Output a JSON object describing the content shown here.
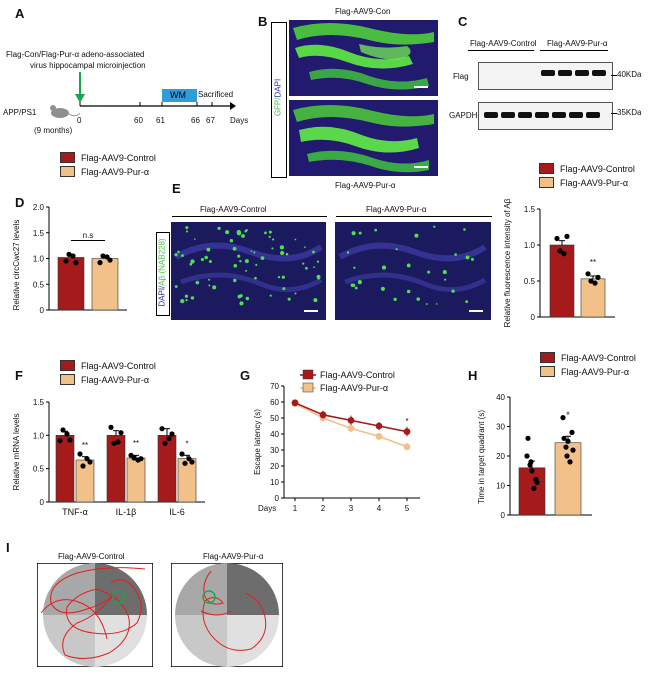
{
  "colors": {
    "control": "#a51b1b",
    "pur": "#f2c089",
    "gfp": "#3ec43e",
    "dapi": "#1f1a7a",
    "wm_box": "#2f9ed8",
    "arrow": "#1aa64b"
  },
  "legend": {
    "control": "Flag-AAV9-Control",
    "pur": "Flag-AAV9-Pur-α"
  },
  "panelA": {
    "label": "A",
    "title_line1": "Flag-Con/Flag-Pur-α  adeno-associated",
    "title_line2": "virus hippocampal microinjection",
    "mouse": "APP/PS1",
    "age": "(9 months)",
    "ticks": [
      "0",
      "60",
      "61",
      "66",
      "67"
    ],
    "wm": "WM",
    "sacrificed": "Sacrificed",
    "days": "Days"
  },
  "panelB": {
    "label": "B",
    "top_title": "Flag-AAV9-Con",
    "bottom_title": "Flag-AAV9-Pur-α",
    "side_gfp": "GFP/",
    "side_dapi": "DAPI"
  },
  "panelC": {
    "label": "C",
    "header_control": "Flag-AAV9-Control",
    "header_pur": "Flag-AAV9-Pur-α",
    "row1": "Flag",
    "row2": "GAPDH",
    "mw1": "40KDa",
    "mw2": "35KDa"
  },
  "panelD": {
    "label": "D",
    "ylabel": "Relative circCwc27 levels",
    "sig": "n.s"
  },
  "panelE": {
    "label": "E",
    "header_control": "Flag-AAV9-Control",
    "header_pur": "Flag-AAV9-Pur-α",
    "side_dapi": "DAPI/",
    "side_ab": "Aβ (NAB228)",
    "ylabel": "Relative fluorescence intensity of Aβ",
    "sig": "**"
  },
  "panelF": {
    "label": "F",
    "ylabel": "Relative mRNA levels"
  },
  "panelG": {
    "label": "G",
    "ylabel": "Escape latency (s)",
    "xlabel": "Days",
    "sig": "*"
  },
  "panelH": {
    "label": "H",
    "ylabel": "Time in target quadrant (s)",
    "sig": "*"
  },
  "panelI": {
    "label": "I",
    "title_control": "Flag-AAV9-Control",
    "title_pur": "Flag-AAV9-Pur-α"
  },
  "chart_data": [
    {
      "id": "D",
      "type": "bar",
      "categories": [
        "Flag-AAV9-Control",
        "Flag-AAV9-Pur-α"
      ],
      "values": [
        1.02,
        1.0
      ],
      "errors": [
        0.05,
        0.05
      ],
      "points": [
        [
          0.95,
          1.08,
          1.05,
          0.92
        ],
        [
          0.92,
          1.05,
          1.03,
          0.97
        ]
      ],
      "ylim": [
        0,
        2.0
      ],
      "yticks": [
        "0",
        "0.5",
        "1.0",
        "1.5",
        "2.0"
      ],
      "ylabel": "Relative circCwc27 levels",
      "annotation": "n.s"
    },
    {
      "id": "E",
      "type": "bar",
      "categories": [
        "Flag-AAV9-Control",
        "Flag-AAV9-Pur-α"
      ],
      "values": [
        1.0,
        0.53
      ],
      "errors": [
        0.06,
        0.04
      ],
      "points": [
        [
          1.09,
          0.92,
          0.88,
          1.12
        ],
        [
          0.6,
          0.5,
          0.47,
          0.55
        ]
      ],
      "ylim": [
        0,
        1.5
      ],
      "yticks": [
        "0",
        "0.5",
        "1.0",
        "1.5"
      ],
      "ylabel": "Relative fluorescence intensity of Aβ",
      "annotation": "**"
    },
    {
      "id": "F",
      "type": "bar",
      "categories": [
        "TNF-α",
        "IL-1β",
        "IL-6"
      ],
      "series": [
        {
          "name": "Flag-AAV9-Control",
          "values": [
            1.0,
            1.0,
            1.0
          ],
          "errors": [
            0.06,
            0.07,
            0.1
          ],
          "points": [
            [
              0.92,
              1.08,
              1.02,
              0.93
            ],
            [
              1.12,
              0.88,
              0.9,
              1.04
            ],
            [
              1.1,
              0.88,
              0.95,
              1.02
            ]
          ]
        },
        {
          "name": "Flag-AAV9-Pur-α",
          "values": [
            0.63,
            0.66,
            0.65
          ],
          "errors": [
            0.05,
            0.04,
            0.05
          ],
          "points": [
            [
              0.72,
              0.54,
              0.65,
              0.6
            ],
            [
              0.7,
              0.66,
              0.63,
              0.65
            ],
            [
              0.72,
              0.58,
              0.65,
              0.6
            ]
          ]
        }
      ],
      "annotations": [
        "**",
        "**",
        "*"
      ],
      "ylim": [
        0,
        1.5
      ],
      "yticks": [
        "0",
        "0.5",
        "1.0",
        "1.5"
      ],
      "ylabel": "Relative mRNA levels"
    },
    {
      "id": "G",
      "type": "line",
      "x": [
        1,
        2,
        3,
        4,
        5
      ],
      "series": [
        {
          "name": "Flag-AAV9-Control",
          "values": [
            59.5,
            52,
            48.5,
            45,
            41.5
          ],
          "errors": [
            1.5,
            2.5,
            3,
            2.5,
            3
          ]
        },
        {
          "name": "Flag-AAV9-Pur-α",
          "values": [
            59,
            50,
            43.5,
            38.5,
            32
          ],
          "errors": [
            1.5,
            2,
            2.5,
            2,
            2
          ]
        }
      ],
      "ylim": [
        0,
        70
      ],
      "yticks": [
        "0",
        "10",
        "20",
        "30",
        "40",
        "50",
        "60",
        "70"
      ],
      "xticks": [
        "1",
        "2",
        "3",
        "4",
        "5"
      ],
      "xlabel": "Days",
      "ylabel": "Escape latency (s)",
      "annotation": "*"
    },
    {
      "id": "H",
      "type": "bar",
      "categories": [
        "Flag-AAV9-Control",
        "Flag-AAV9-Pur-α"
      ],
      "values": [
        16,
        24.5
      ],
      "errors": [
        2.3,
        2.2
      ],
      "points": [
        [
          20,
          17,
          9,
          11,
          26,
          15,
          12,
          18
        ],
        [
          33,
          23,
          18,
          22,
          26,
          25,
          28,
          20
        ]
      ],
      "ylim": [
        0,
        40
      ],
      "yticks": [
        "0",
        "10",
        "20",
        "30",
        "40"
      ],
      "ylabel": "Time in target quadrant (s)",
      "annotation": "*"
    }
  ]
}
